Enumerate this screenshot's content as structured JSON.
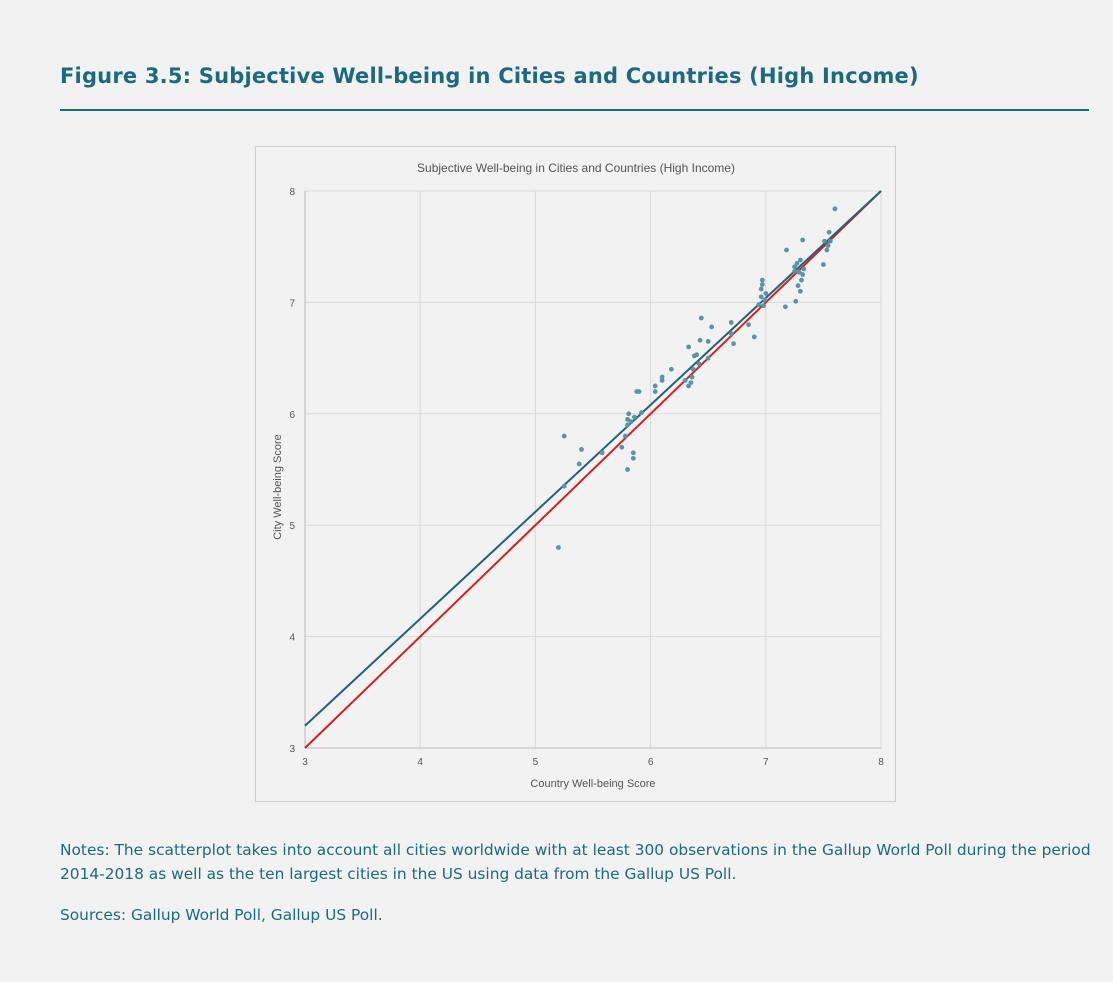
{
  "figure": {
    "title": "Figure 3.5: Subjective Well-being in Cities and Countries (High Income)",
    "notes": "Notes: The scatterplot takes into account all cities worldwide with at least 300 observations in the Gallup World Poll during the period 2014-2018 as well as the ten largest cities in the US using data from the Gallup US Poll.",
    "sources": "Sources: Gallup World Poll, Gallup US Poll."
  },
  "colors": {
    "accent": "#1b6a80",
    "points": "#5b93a8",
    "fit_line": "#22617a",
    "diagonal": "#d42020",
    "grid": "#d9d9d9"
  },
  "chart_data": {
    "type": "scatter",
    "title": "Subjective Well-being in Cities and Countries (High Income)",
    "xlabel": "Country Well-being Score",
    "ylabel": "City Well-being Score",
    "xlim": [
      3,
      8
    ],
    "ylim": [
      3,
      8
    ],
    "xticks": [
      3,
      4,
      5,
      6,
      7,
      8
    ],
    "yticks": [
      3,
      4,
      5,
      6,
      7,
      8
    ],
    "grid": true,
    "lines": [
      {
        "kind": "fitted",
        "color": "#22617a",
        "x": [
          3,
          8
        ],
        "y": [
          3.2,
          8.0
        ]
      },
      {
        "kind": "diagonal",
        "color": "#d42020",
        "x": [
          3,
          8
        ],
        "y": [
          3.0,
          8.0
        ]
      }
    ],
    "points": [
      {
        "x": 5.2,
        "y": 4.8
      },
      {
        "x": 5.25,
        "y": 5.8
      },
      {
        "x": 5.25,
        "y": 5.35
      },
      {
        "x": 5.38,
        "y": 5.55
      },
      {
        "x": 5.4,
        "y": 5.68
      },
      {
        "x": 5.58,
        "y": 5.65
      },
      {
        "x": 5.75,
        "y": 5.7
      },
      {
        "x": 5.78,
        "y": 5.8
      },
      {
        "x": 5.8,
        "y": 5.5
      },
      {
        "x": 5.8,
        "y": 5.9
      },
      {
        "x": 5.8,
        "y": 5.95
      },
      {
        "x": 5.81,
        "y": 6.0
      },
      {
        "x": 5.83,
        "y": 5.93
      },
      {
        "x": 5.85,
        "y": 5.6
      },
      {
        "x": 5.85,
        "y": 5.65
      },
      {
        "x": 5.86,
        "y": 5.97
      },
      {
        "x": 5.88,
        "y": 6.2
      },
      {
        "x": 5.9,
        "y": 6.2
      },
      {
        "x": 5.92,
        "y": 6.01
      },
      {
        "x": 6.04,
        "y": 6.2
      },
      {
        "x": 6.04,
        "y": 6.25
      },
      {
        "x": 6.1,
        "y": 6.3
      },
      {
        "x": 6.1,
        "y": 6.33
      },
      {
        "x": 6.18,
        "y": 6.4
      },
      {
        "x": 6.3,
        "y": 6.3
      },
      {
        "x": 6.33,
        "y": 6.25
      },
      {
        "x": 6.33,
        "y": 6.6
      },
      {
        "x": 6.35,
        "y": 6.28
      },
      {
        "x": 6.36,
        "y": 6.33
      },
      {
        "x": 6.37,
        "y": 6.4
      },
      {
        "x": 6.38,
        "y": 6.52
      },
      {
        "x": 6.4,
        "y": 6.53
      },
      {
        "x": 6.42,
        "y": 6.45
      },
      {
        "x": 6.43,
        "y": 6.66
      },
      {
        "x": 6.44,
        "y": 6.86
      },
      {
        "x": 6.5,
        "y": 6.5
      },
      {
        "x": 6.5,
        "y": 6.65
      },
      {
        "x": 6.53,
        "y": 6.78
      },
      {
        "x": 6.7,
        "y": 6.82
      },
      {
        "x": 6.7,
        "y": 6.72
      },
      {
        "x": 6.72,
        "y": 6.63
      },
      {
        "x": 6.85,
        "y": 6.8
      },
      {
        "x": 6.9,
        "y": 6.69
      },
      {
        "x": 6.94,
        "y": 6.98
      },
      {
        "x": 6.96,
        "y": 7.05
      },
      {
        "x": 6.96,
        "y": 7.12
      },
      {
        "x": 6.97,
        "y": 7.16
      },
      {
        "x": 6.97,
        "y": 7.2
      },
      {
        "x": 6.98,
        "y": 6.97
      },
      {
        "x": 6.99,
        "y": 7.02
      },
      {
        "x": 7.0,
        "y": 7.08
      },
      {
        "x": 7.17,
        "y": 6.96
      },
      {
        "x": 7.18,
        "y": 7.47
      },
      {
        "x": 7.25,
        "y": 7.32
      },
      {
        "x": 7.25,
        "y": 7.28
      },
      {
        "x": 7.26,
        "y": 7.01
      },
      {
        "x": 7.27,
        "y": 7.35
      },
      {
        "x": 7.28,
        "y": 7.15
      },
      {
        "x": 7.29,
        "y": 7.27
      },
      {
        "x": 7.3,
        "y": 7.38
      },
      {
        "x": 7.3,
        "y": 7.1
      },
      {
        "x": 7.31,
        "y": 7.2
      },
      {
        "x": 7.32,
        "y": 7.25
      },
      {
        "x": 7.32,
        "y": 7.56
      },
      {
        "x": 7.33,
        "y": 7.3
      },
      {
        "x": 7.5,
        "y": 7.34
      },
      {
        "x": 7.51,
        "y": 7.55
      },
      {
        "x": 7.53,
        "y": 7.47
      },
      {
        "x": 7.54,
        "y": 7.51
      },
      {
        "x": 7.55,
        "y": 7.63
      },
      {
        "x": 7.56,
        "y": 7.55
      },
      {
        "x": 7.6,
        "y": 7.84
      }
    ]
  }
}
